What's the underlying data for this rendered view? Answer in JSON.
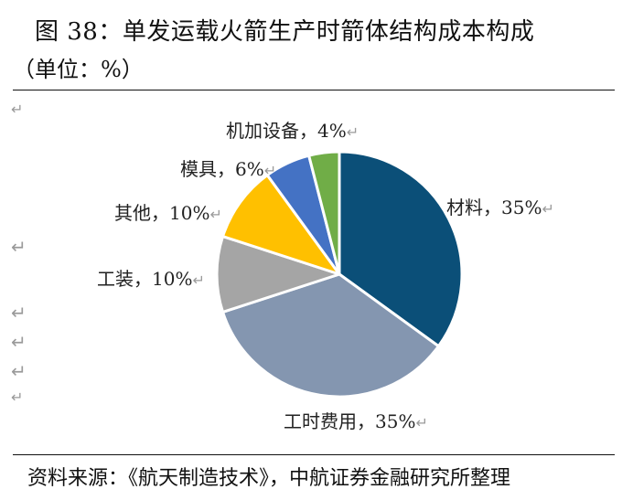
{
  "title": "图 38：单发运载火箭生产时箭体结构成本构成",
  "subtitle": "（单位：%）",
  "source": "资料来源：《航天制造技术》，中航证券金融研究所整理",
  "chart_data": {
    "type": "pie",
    "unit": "%",
    "slices": [
      {
        "label": "材料",
        "value": 35,
        "color": "#0b4f78"
      },
      {
        "label": "工时费用",
        "value": 35,
        "color": "#8496b0"
      },
      {
        "label": "工装",
        "value": 10,
        "color": "#a5a5a5"
      },
      {
        "label": "其他",
        "value": 10,
        "color": "#ffc000"
      },
      {
        "label": "模具",
        "value": 6,
        "color": "#4472c4"
      },
      {
        "label": "机加设备",
        "value": 4,
        "color": "#70ad47"
      }
    ]
  },
  "para_mark": "↵"
}
